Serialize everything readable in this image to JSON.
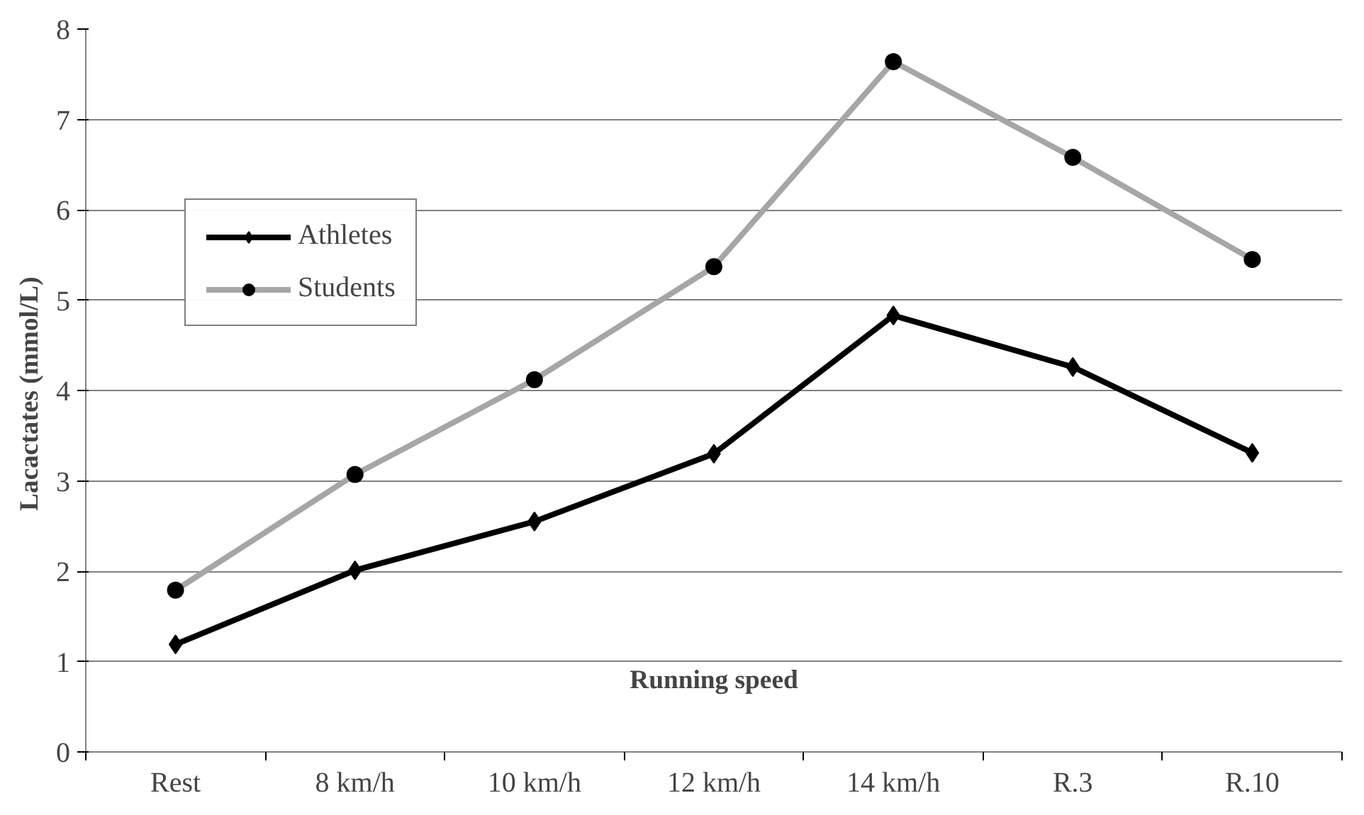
{
  "chart_data": {
    "type": "line",
    "xlabel": "Running speed",
    "ylabel": "Lacactates  (mmol/L)",
    "categories": [
      "Rest",
      "8 km/h",
      "10 km/h",
      "12 km/h",
      "14 km/h",
      "R.3",
      "R.10"
    ],
    "series": [
      {
        "name": "Athletes",
        "color": "#000000",
        "marker": "diamond",
        "values": [
          1.19,
          2.01,
          2.55,
          3.3,
          4.83,
          4.26,
          3.31
        ]
      },
      {
        "name": "Students",
        "color": "#a6a6a6",
        "marker": "circle",
        "values": [
          1.79,
          3.07,
          4.12,
          5.37,
          7.64,
          6.58,
          5.45
        ]
      }
    ],
    "ylim": [
      0,
      8
    ],
    "yticks": [
      0,
      1,
      2,
      3,
      4,
      5,
      6,
      7,
      8
    ],
    "grid": "y",
    "legend": "top left",
    "line_style": "solid"
  }
}
